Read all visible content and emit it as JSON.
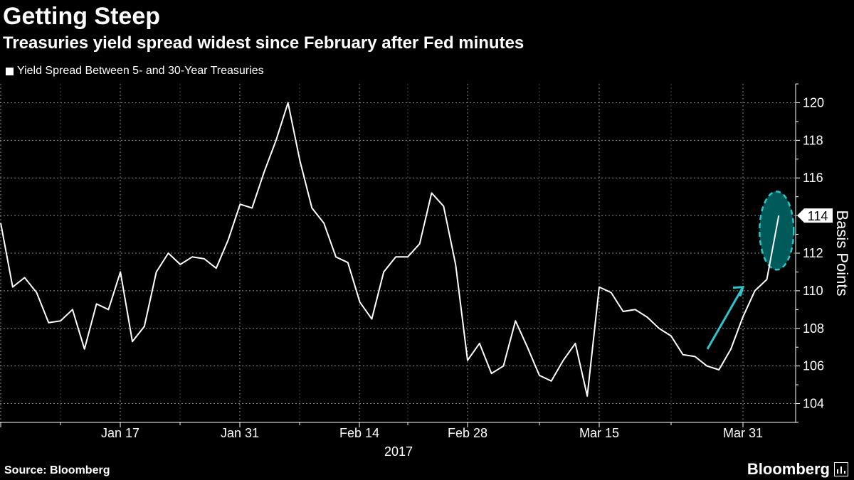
{
  "header": {
    "title": "Getting Steep",
    "subtitle": "Treasuries yield spread widest since February after Fed minutes"
  },
  "footer": {
    "source": "Source: Bloomberg",
    "brand": "Bloomberg"
  },
  "colors": {
    "background": "#000000",
    "line": "#ffffff",
    "arrow": "#2ec4cc",
    "ellipse_fill": "#005a5a",
    "ellipse_stroke": "#2ec4cc"
  },
  "chart_data": {
    "type": "line",
    "title": "Getting Steep",
    "subtitle": "Treasuries yield spread widest since February after Fed minutes",
    "ylabel": "Basis Points",
    "xlabel": "",
    "year_label": "2017",
    "ylim": [
      103,
      121
    ],
    "yticks": [
      104,
      106,
      108,
      110,
      112,
      114,
      116,
      118,
      120
    ],
    "grid": true,
    "legend": "top-left",
    "last_value_label": "114",
    "x_tick_labels": [
      "Jan 17",
      "Jan 31",
      "Feb 14",
      "Feb 28",
      "Mar 15",
      "Mar 31"
    ],
    "series": [
      {
        "name": "Yield Spread Between 5- and 30-Year Treasuries",
        "values": [
          113.6,
          110.2,
          110.7,
          109.9,
          108.3,
          108.4,
          109.0,
          106.9,
          109.3,
          109.0,
          111.0,
          107.3,
          108.1,
          111.0,
          112.0,
          111.4,
          111.8,
          111.7,
          111.2,
          112.7,
          114.6,
          114.4,
          116.3,
          118.0,
          120.0,
          116.9,
          114.4,
          113.6,
          111.8,
          111.5,
          109.4,
          108.5,
          111.0,
          111.8,
          111.8,
          112.5,
          115.2,
          114.5,
          111.4,
          106.3,
          107.2,
          105.6,
          106.0,
          108.4,
          107.0,
          105.5,
          105.2,
          106.3,
          107.2,
          104.4,
          110.2,
          109.9,
          108.9,
          109.0,
          108.6,
          108.0,
          107.6,
          106.6,
          106.5,
          106.0,
          105.8,
          106.9,
          108.6,
          110.0,
          110.6,
          114.0
        ]
      }
    ]
  }
}
